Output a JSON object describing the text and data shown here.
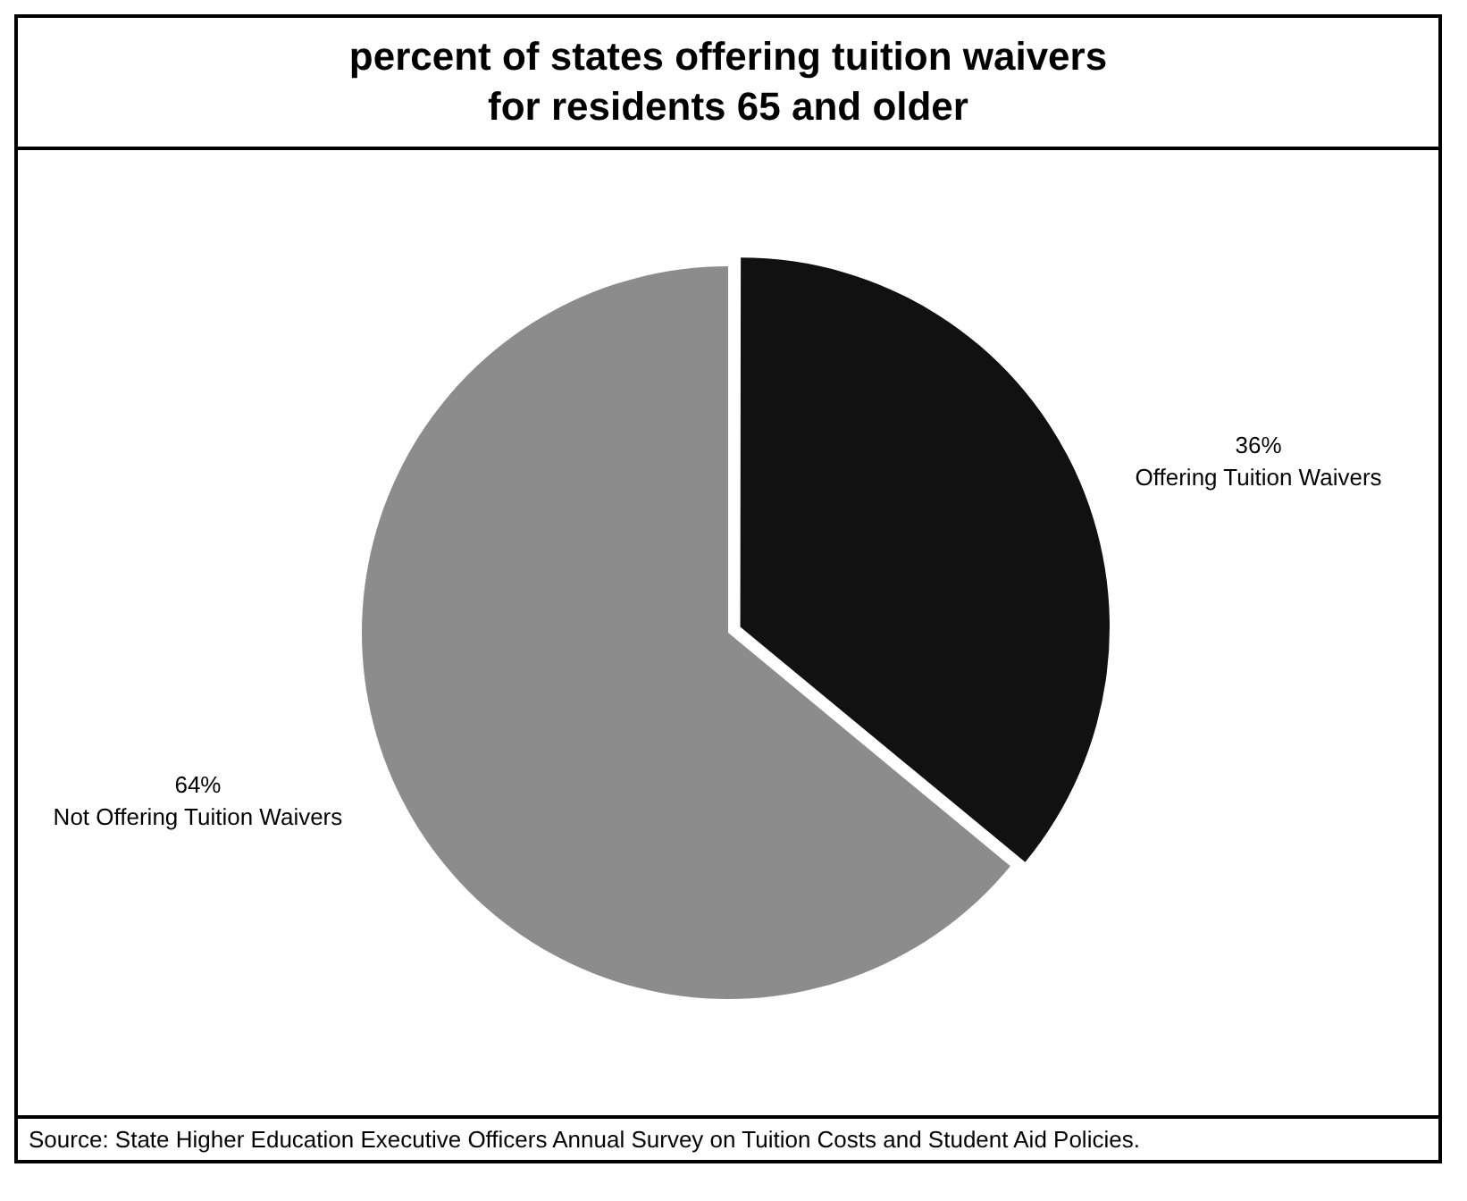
{
  "chart_data": {
    "type": "pie",
    "title": "percent of states offering tuition waivers\nfor residents 65 and older",
    "categories": [
      "Offering Tuition Waivers",
      "Not Offering Tuition Waivers"
    ],
    "values": [
      36,
      64
    ],
    "value_labels": [
      "36%",
      "64%"
    ],
    "colors": [
      "#111111",
      "#8c8c8c"
    ],
    "legend": false,
    "annotations": [
      "Source: State Higher Education Executive Officers Annual Survey on Tuition Costs and Student Aid Policies."
    ]
  }
}
